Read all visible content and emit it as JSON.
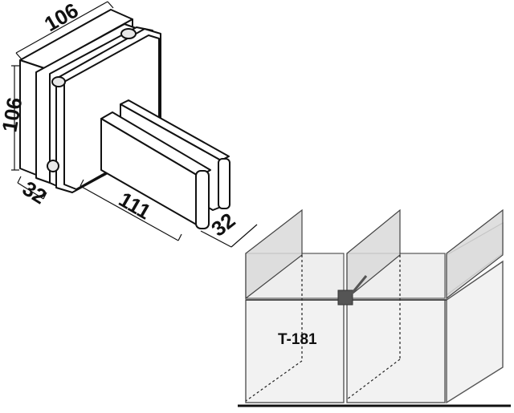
{
  "dimensions": {
    "width_top": "106",
    "height_left": "106",
    "depth_left": "32",
    "length": "111",
    "depth_right": "32"
  },
  "model_code": "T-181"
}
